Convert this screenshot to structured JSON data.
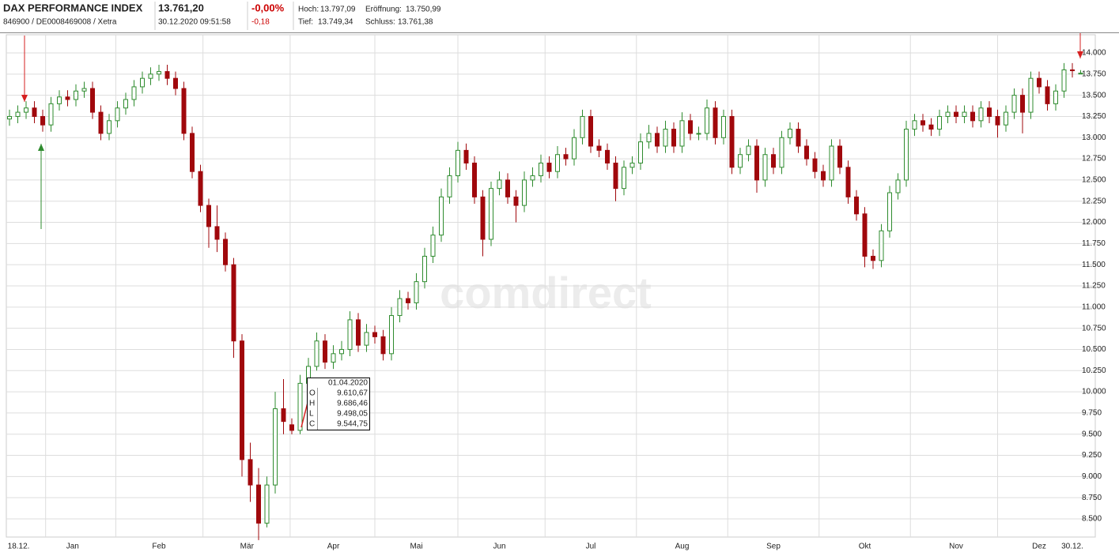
{
  "header": {
    "name": "DAX PERFORMANCE INDEX",
    "ids": "846900 / DE0008469008 / Xetra",
    "price": "13.761,20",
    "timestamp": "30.12.2020 09:51:58",
    "change_pct": "-0,00%",
    "change_abs": "-0,18",
    "high_label": "Hoch:",
    "high": "13.797,09",
    "open_label": "Eröffnung:",
    "open": "13.750,99",
    "low_label": "Tief:",
    "low": "13.749,34",
    "close_label": "Schluss:",
    "close": "13.761,38"
  },
  "watermark": "comdirect",
  "tooltip": {
    "date": "01.04.2020",
    "rows": [
      {
        "label": "O",
        "value": "9.610,67"
      },
      {
        "label": "H",
        "value": "9.686,46"
      },
      {
        "label": "L",
        "value": "9.498,05"
      },
      {
        "label": "C",
        "value": "9.544,75"
      }
    ]
  },
  "chart_data": {
    "type": "candlestick",
    "up_color": "#2e8b2e",
    "down_color": "#a0080c",
    "grid": true,
    "open": [
      13220,
      13250,
      13300,
      13350,
      13250,
      13150,
      13400,
      13480,
      13450,
      13550,
      13580,
      13300,
      13050,
      13200,
      13350,
      13450,
      13600,
      13700,
      13750,
      13780,
      13700,
      13580,
      13050,
      12600,
      12200,
      11950,
      11800,
      11500,
      10600,
      9200,
      8900,
      8450,
      8900,
      9800,
      9610.67,
      9544.75,
      10100,
      10300,
      10600,
      10350,
      10450,
      10500,
      10850,
      10550,
      10700,
      10650,
      10450,
      10900,
      11100,
      11050,
      11300,
      11600,
      11850,
      12300,
      12550,
      12850,
      12700,
      12300,
      11800,
      12400,
      12500,
      12300,
      12200,
      12500,
      12550,
      12700,
      12600,
      12800,
      12750,
      13000,
      13250,
      12900,
      12850,
      12700,
      12400,
      12650,
      12700,
      12950,
      13050,
      12900,
      13100,
      12900,
      13200,
      13050,
      13050,
      13350,
      13000,
      13250,
      12650,
      12800,
      12900,
      12500,
      12800,
      12650,
      13000,
      13100,
      12900,
      12750,
      12600,
      12500,
      12900,
      12650,
      12300,
      12100,
      11600,
      11550,
      11900,
      12350,
      12500,
      13100,
      13200,
      13150,
      13100,
      13250,
      13300,
      13250,
      13300,
      13200,
      13350,
      13250,
      13150,
      13300,
      13500,
      13300,
      13700,
      13600,
      13400,
      13550,
      13800,
      13750.99
    ],
    "high": [
      13330,
      13380,
      13430,
      13430,
      13330,
      13480,
      13560,
      13560,
      13630,
      13660,
      13660,
      13380,
      13280,
      13430,
      13530,
      13680,
      13780,
      13830,
      13860,
      13860,
      13780,
      13660,
      13130,
      12680,
      12280,
      12200,
      11880,
      11580,
      10680,
      9400,
      9100,
      9000,
      10000,
      10150,
      9686.46,
      10200,
      10400,
      10700,
      10680,
      10550,
      10600,
      10950,
      10930,
      10800,
      10780,
      10730,
      11000,
      11200,
      11180,
      11400,
      11700,
      11950,
      12400,
      12650,
      12950,
      12930,
      12780,
      12380,
      12480,
      12600,
      12580,
      12380,
      12600,
      12650,
      12800,
      12780,
      12900,
      12880,
      13100,
      13330,
      13330,
      12980,
      12930,
      12780,
      12730,
      12780,
      13050,
      13150,
      13130,
      13200,
      13180,
      13300,
      13280,
      13130,
      13450,
      13430,
      13330,
      13330,
      12880,
      12980,
      12980,
      12880,
      12880,
      13080,
      13180,
      13180,
      12980,
      12830,
      12680,
      12980,
      12980,
      12730,
      12380,
      12180,
      11680,
      11980,
      12430,
      12580,
      13200,
      13280,
      13280,
      13230,
      13330,
      13380,
      13380,
      13380,
      13380,
      13430,
      13430,
      13330,
      13380,
      13580,
      13580,
      13780,
      13780,
      13680,
      13630,
      13880,
      13880,
      13797.09
    ],
    "low": [
      13140,
      13170,
      13220,
      13170,
      13070,
      13070,
      13320,
      13370,
      13370,
      13470,
      13220,
      12970,
      12970,
      13120,
      13270,
      13370,
      13520,
      13620,
      13670,
      13620,
      13500,
      12970,
      12520,
      12120,
      11700,
      11650,
      11420,
      10400,
      9000,
      8700,
      8250,
      8400,
      8800,
      9500,
      9498.05,
      9500,
      10000,
      10250,
      10270,
      10270,
      10370,
      10420,
      10470,
      10470,
      10570,
      10370,
      10370,
      10820,
      10970,
      10970,
      11220,
      11520,
      11770,
      12220,
      12470,
      12620,
      12220,
      11600,
      11720,
      12320,
      12220,
      12000,
      12120,
      12420,
      12470,
      12520,
      12520,
      12670,
      12670,
      12920,
      12820,
      12770,
      12620,
      12250,
      12320,
      12570,
      12620,
      12870,
      12820,
      12820,
      12820,
      12820,
      12970,
      12970,
      12970,
      12920,
      12920,
      12570,
      12570,
      12720,
      12350,
      12420,
      12570,
      12570,
      12920,
      12820,
      12670,
      12520,
      12420,
      12420,
      12570,
      12220,
      12020,
      11470,
      11450,
      11470,
      11820,
      12270,
      12420,
      13020,
      13070,
      13020,
      13020,
      13170,
      13170,
      13170,
      13120,
      13120,
      13170,
      13000,
      13070,
      13220,
      13050,
      13220,
      13520,
      13320,
      13320,
      13470,
      13710,
      13749.34
    ],
    "close": [
      13250,
      13300,
      13350,
      13250,
      13150,
      13400,
      13480,
      13450,
      13550,
      13580,
      13300,
      13050,
      13200,
      13350,
      13450,
      13600,
      13700,
      13750,
      13780,
      13700,
      13580,
      13050,
      12600,
      12200,
      11950,
      11800,
      11500,
      10600,
      9200,
      8900,
      8450,
      8900,
      9800,
      9650,
      9544.75,
      10100,
      10300,
      10600,
      10350,
      10450,
      10500,
      10850,
      10550,
      10700,
      10650,
      10450,
      10900,
      11100,
      11050,
      11300,
      11600,
      11850,
      12300,
      12550,
      12850,
      12700,
      12300,
      11800,
      12400,
      12500,
      12300,
      12200,
      12500,
      12550,
      12700,
      12600,
      12800,
      12750,
      13000,
      13250,
      12900,
      12850,
      12700,
      12400,
      12650,
      12700,
      12950,
      13050,
      12900,
      13100,
      12900,
      13200,
      13050,
      13050,
      13350,
      13000,
      13250,
      12650,
      12800,
      12900,
      12500,
      12800,
      12650,
      13000,
      13100,
      12900,
      12750,
      12600,
      12500,
      12900,
      12650,
      12300,
      12100,
      11600,
      11550,
      11900,
      12350,
      12500,
      13100,
      13200,
      13150,
      13100,
      13250,
      13300,
      13250,
      13300,
      13200,
      13350,
      13250,
      13150,
      13300,
      13500,
      13300,
      13700,
      13600,
      13400,
      13550,
      13800,
      13790,
      13761.2
    ],
    "xticks": [
      {
        "value": 1.1,
        "label": "18.12."
      },
      {
        "value": 7.6,
        "label": "Jan"
      },
      {
        "value": 18,
        "label": "Feb"
      },
      {
        "value": 28.6,
        "label": "Mär"
      },
      {
        "value": 39,
        "label": "Apr"
      },
      {
        "value": 49,
        "label": "Mai"
      },
      {
        "value": 59,
        "label": "Jun"
      },
      {
        "value": 70,
        "label": "Jul"
      },
      {
        "value": 81,
        "label": "Aug"
      },
      {
        "value": 92,
        "label": "Sep"
      },
      {
        "value": 103,
        "label": "Okt"
      },
      {
        "value": 114,
        "label": "Nov"
      },
      {
        "value": 124,
        "label": "Dez"
      },
      {
        "value": 128,
        "label": "30.12."
      }
    ],
    "ylim": [
      8500,
      14000
    ],
    "yticks": [
      {
        "value": 8500,
        "label": "8.500"
      },
      {
        "value": 8750,
        "label": "8.750"
      },
      {
        "value": 9000,
        "label": "9.000"
      },
      {
        "value": 9250,
        "label": "9.250"
      },
      {
        "value": 9500,
        "label": "9.500"
      },
      {
        "value": 9750,
        "label": "9.750"
      },
      {
        "value": 10000,
        "label": "10.000"
      },
      {
        "value": 10250,
        "label": "10.250"
      },
      {
        "value": 10500,
        "label": "10.500"
      },
      {
        "value": 10750,
        "label": "10.750"
      },
      {
        "value": 11000,
        "label": "11.000"
      },
      {
        "value": 11250,
        "label": "11.250"
      },
      {
        "value": 11500,
        "label": "11.500"
      },
      {
        "value": 11750,
        "label": "11.750"
      },
      {
        "value": 12000,
        "label": "12.000"
      },
      {
        "value": 12250,
        "label": "12.250"
      },
      {
        "value": 12500,
        "label": "12.500"
      },
      {
        "value": 12750,
        "label": "12.750"
      },
      {
        "value": 13000,
        "label": "13.000"
      },
      {
        "value": 13250,
        "label": "13.250"
      },
      {
        "value": 13500,
        "label": "13.500"
      },
      {
        "value": 13750,
        "label": "13.750"
      },
      {
        "value": 14000,
        "label": "14.000"
      }
    ]
  }
}
